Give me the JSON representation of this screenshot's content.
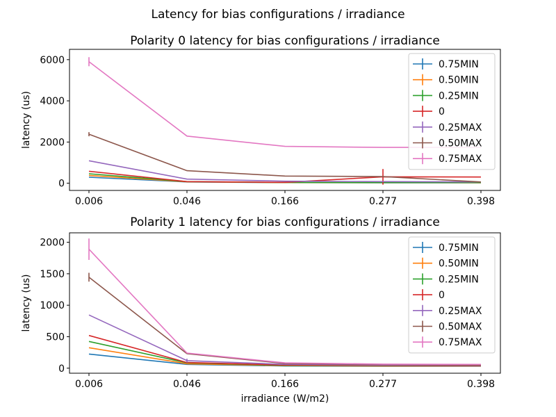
{
  "figure": {
    "suptitle": "Latency for bias configurations / irradiance"
  },
  "series_colors": {
    "0.75MIN": "#1f77b4",
    "0.50MIN": "#ff7f0e",
    "0.25MIN": "#2ca02c",
    "0": "#d62728",
    "0.25MAX": "#9467bd",
    "0.50MAX": "#8c564b",
    "0.75MAX": "#e377c2"
  },
  "chart_data": [
    {
      "type": "line",
      "title": "Polarity 0 latency for bias configurations / irradiance",
      "xlabel": "",
      "ylabel": "latency (us)",
      "x": [
        "0.006",
        "0.046",
        "0.166",
        "0.277",
        "0.398"
      ],
      "ylim": [
        -350,
        6500
      ],
      "yticks": [
        "0",
        "2000",
        "4000",
        "6000"
      ],
      "ytick_values": [
        0,
        2000,
        4000,
        6000
      ],
      "legend": "top-right",
      "series": [
        {
          "name": "0.75MIN",
          "values": [
            290,
            60,
            30,
            25,
            25
          ],
          "err": [
            0,
            0,
            0,
            0,
            0
          ]
        },
        {
          "name": "0.50MIN",
          "values": [
            380,
            70,
            30,
            28,
            25
          ],
          "err": [
            0,
            0,
            0,
            0,
            0
          ]
        },
        {
          "name": "0.25MIN",
          "values": [
            460,
            80,
            35,
            30,
            30
          ],
          "err": [
            0,
            0,
            0,
            60,
            0
          ]
        },
        {
          "name": "0",
          "values": [
            580,
            80,
            40,
            310,
            300
          ],
          "err": [
            0,
            0,
            0,
            380,
            0
          ]
        },
        {
          "name": "0.25MAX",
          "values": [
            1090,
            200,
            100,
            80,
            60
          ],
          "err": [
            0,
            0,
            0,
            0,
            0
          ]
        },
        {
          "name": "0.50MAX",
          "values": [
            2380,
            610,
            350,
            320,
            60
          ],
          "err": [
            100,
            0,
            0,
            0,
            0
          ]
        },
        {
          "name": "0.75MAX",
          "values": [
            5900,
            2290,
            1790,
            1740,
            1740
          ],
          "err": [
            220,
            0,
            0,
            0,
            0
          ]
        }
      ]
    },
    {
      "type": "line",
      "title": "Polarity 1 latency for bias configurations / irradiance",
      "xlabel": "irradiance (W/m2)",
      "ylabel": "latency (us)",
      "x": [
        "0.006",
        "0.046",
        "0.166",
        "0.277",
        "0.398"
      ],
      "ylim": [
        -80,
        2150
      ],
      "yticks": [
        "0",
        "500",
        "1000",
        "1500",
        "2000"
      ],
      "ytick_values": [
        0,
        500,
        1000,
        1500,
        2000
      ],
      "legend": "top-right",
      "series": [
        {
          "name": "0.75MIN",
          "values": [
            225,
            60,
            35,
            30,
            30
          ],
          "err": [
            0,
            0,
            0,
            0,
            0
          ]
        },
        {
          "name": "0.50MIN",
          "values": [
            325,
            70,
            40,
            35,
            35
          ],
          "err": [
            0,
            0,
            0,
            0,
            0
          ]
        },
        {
          "name": "0.25MIN",
          "values": [
            425,
            85,
            45,
            40,
            40
          ],
          "err": [
            0,
            0,
            0,
            0,
            0
          ]
        },
        {
          "name": "0",
          "values": [
            520,
            90,
            50,
            45,
            40
          ],
          "err": [
            0,
            0,
            0,
            0,
            0
          ]
        },
        {
          "name": "0.25MAX",
          "values": [
            845,
            120,
            60,
            50,
            45
          ],
          "err": [
            0,
            30,
            0,
            0,
            0
          ]
        },
        {
          "name": "0.50MAX",
          "values": [
            1445,
            230,
            75,
            60,
            50
          ],
          "err": [
            70,
            0,
            0,
            0,
            0
          ]
        },
        {
          "name": "0.75MAX",
          "values": [
            1890,
            240,
            85,
            65,
            60
          ],
          "err": [
            170,
            0,
            0,
            0,
            0
          ]
        }
      ]
    }
  ]
}
